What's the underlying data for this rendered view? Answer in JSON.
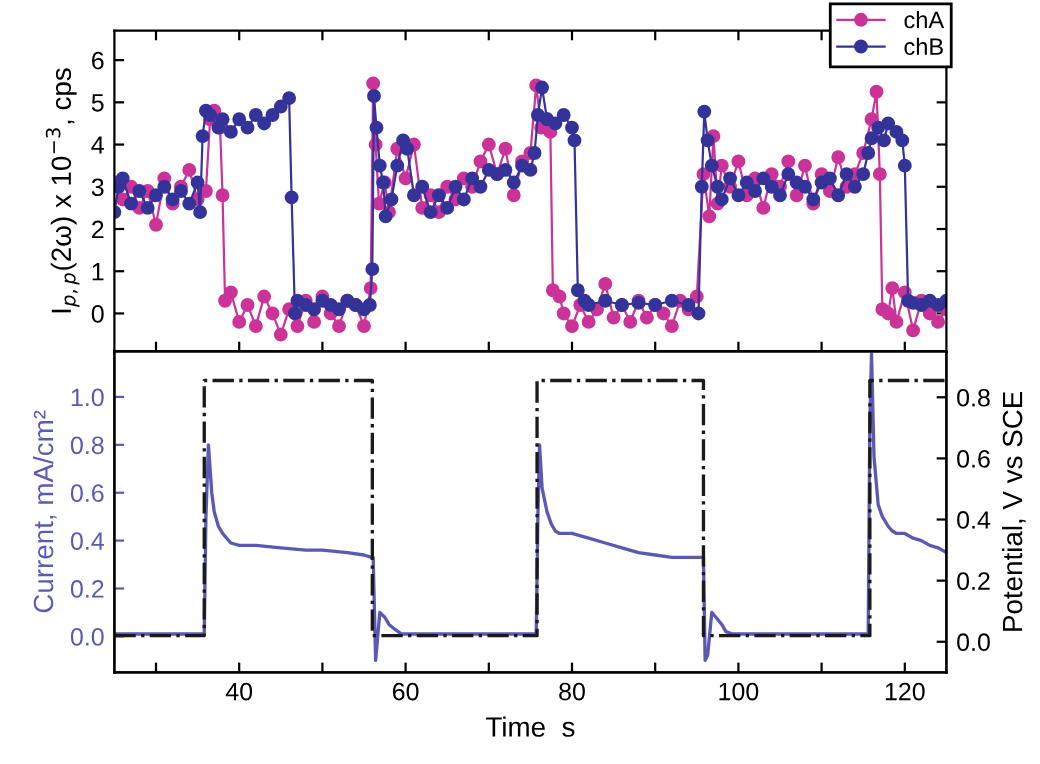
{
  "chart_data": [
    {
      "type": "line",
      "ylabel": "I$_{p,p}$(2ω) x 10$^{−3}$, cps",
      "legend": "top right",
      "marker": "circle",
      "tick_labels": "y",
      "xlim": [
        25,
        125
      ],
      "xticks": [
        {
          "value": 30,
          "label": null
        },
        {
          "value": 40,
          "label": null
        },
        {
          "value": 50,
          "label": null
        },
        {
          "value": 60,
          "label": null
        },
        {
          "value": 70,
          "label": null
        },
        {
          "value": 80,
          "label": null
        },
        {
          "value": 90,
          "label": null
        },
        {
          "value": 100,
          "label": null
        },
        {
          "value": 110,
          "label": null
        },
        {
          "value": 120,
          "label": null
        }
      ],
      "ylim": [
        -0.9,
        6.7
      ],
      "yticks": [
        0,
        1,
        2,
        3,
        4,
        5,
        6
      ],
      "series": [
        {
          "name": "chA",
          "color": "#cc3399",
          "x": [
            25,
            26,
            27,
            28,
            29,
            30,
            31,
            32,
            33,
            34,
            35,
            36,
            36.5,
            37,
            37.7,
            38.0,
            38.3,
            39,
            40,
            41,
            42,
            43,
            44,
            45,
            46,
            47,
            48,
            49,
            50,
            51,
            52,
            53,
            54,
            55,
            55.8,
            56.1,
            56.4,
            56.8,
            57.5,
            58,
            59,
            60,
            61,
            62,
            63,
            64,
            65,
            66,
            67,
            68,
            69,
            70,
            71,
            72,
            73,
            74,
            75,
            75.7,
            76.3,
            77.0,
            77.4,
            77.7,
            78.5,
            79,
            80,
            81,
            82,
            83,
            84,
            85,
            86,
            87,
            88,
            89,
            90,
            91,
            92,
            93,
            94,
            95,
            95.8,
            96.5,
            97,
            97.5,
            98,
            99,
            100,
            101,
            102,
            103,
            104,
            105,
            106,
            107,
            108,
            109,
            110,
            111,
            112,
            113,
            114,
            115,
            116,
            116.6,
            117.0,
            117.3,
            118,
            118.5,
            119,
            120,
            121,
            122,
            123,
            124,
            125
          ],
          "values": [
            3.1,
            2.7,
            3.0,
            2.5,
            2.9,
            2.1,
            3.2,
            2.6,
            3.0,
            3.4,
            2.7,
            2.9,
            4.6,
            4.8,
            4.4,
            2.8,
            0.3,
            0.5,
            -0.2,
            0.2,
            -0.3,
            0.4,
            0.0,
            -0.5,
            0.1,
            -0.3,
            0.3,
            -0.2,
            0.4,
            0.0,
            -0.3,
            0.3,
            0.2,
            -0.3,
            0.6,
            5.45,
            4.0,
            2.6,
            3.1,
            2.4,
            3.9,
            3.2,
            4.0,
            2.5,
            2.8,
            2.4,
            3.0,
            2.7,
            3.2,
            3.0,
            3.6,
            4.0,
            3.3,
            3.9,
            2.8,
            3.6,
            3.8,
            5.4,
            4.4,
            4.6,
            4.3,
            0.55,
            0.4,
            0.0,
            -0.3,
            0.2,
            -0.2,
            0.1,
            0.7,
            -0.1,
            0.2,
            -0.2,
            0.3,
            -0.1,
            0.2,
            0.0,
            -0.3,
            0.3,
            0.1,
            0.4,
            3.3,
            2.3,
            4.2,
            2.6,
            3.5,
            3.0,
            3.6,
            2.8,
            3.2,
            2.5,
            3.3,
            3.0,
            3.6,
            2.8,
            3.5,
            2.6,
            3.3,
            2.9,
            3.7,
            3.0,
            3.3,
            3.8,
            4.6,
            5.25,
            3.3,
            0.1,
            0.0,
            0.6,
            -0.2,
            0.5,
            -0.4,
            0.3,
            0.0,
            -0.2,
            0.1
          ]
        },
        {
          "name": "chB",
          "color": "#333399",
          "x": [
            25,
            25.5,
            26,
            27,
            28,
            29,
            30,
            31,
            32,
            33,
            34,
            35,
            35.3,
            35.6,
            36.0,
            36.5,
            37.5,
            38,
            39,
            40,
            41,
            42,
            43,
            44,
            45,
            46,
            46.3,
            46.7,
            47,
            48,
            49,
            50,
            51,
            52,
            53,
            54,
            55,
            55.7,
            56.0,
            56.2,
            56.5,
            56.9,
            57.3,
            57.6,
            58.3,
            59,
            59.7,
            60.2,
            61,
            62,
            63,
            64,
            65,
            66,
            67,
            68,
            69,
            70,
            71,
            72,
            73,
            74,
            75,
            75.5,
            75.9,
            76.4,
            77,
            78,
            79,
            80.0,
            80.3,
            80.7,
            81.5,
            82,
            84,
            86,
            88,
            90,
            92,
            94,
            95.2,
            95.6,
            95.9,
            96.3,
            96.8,
            97.5,
            98,
            99,
            100,
            101,
            102,
            103,
            104,
            105,
            106,
            107,
            108,
            109,
            110,
            111,
            112,
            113,
            114,
            115,
            115.6,
            116,
            116.8,
            117.5,
            118,
            119,
            119.7,
            120.0,
            120.4,
            121,
            122,
            123,
            124,
            125
          ],
          "values": [
            2.4,
            3.0,
            3.2,
            2.6,
            2.9,
            2.5,
            2.8,
            3.0,
            2.7,
            2.9,
            2.6,
            3.1,
            2.4,
            4.2,
            4.8,
            4.7,
            4.4,
            4.6,
            4.3,
            4.6,
            4.4,
            4.7,
            4.5,
            4.7,
            4.9,
            5.1,
            2.75,
            0.0,
            0.3,
            0.2,
            0.1,
            0.3,
            0.2,
            0.1,
            0.3,
            0.2,
            0.1,
            0.2,
            1.05,
            5.15,
            4.4,
            3.5,
            3.1,
            2.3,
            2.7,
            3.5,
            4.1,
            3.9,
            2.8,
            3.0,
            2.4,
            2.8,
            2.5,
            3.0,
            2.7,
            3.2,
            3.0,
            3.4,
            3.3,
            3.4,
            3.1,
            3.5,
            3.4,
            3.8,
            4.7,
            5.35,
            4.6,
            4.5,
            4.7,
            4.4,
            4.1,
            0.55,
            0.3,
            0.2,
            0.3,
            0.2,
            0.25,
            0.2,
            0.3,
            0.2,
            0.0,
            3.0,
            4.78,
            4.1,
            3.5,
            3.0,
            2.7,
            3.2,
            2.8,
            3.1,
            2.9,
            3.2,
            3.0,
            2.8,
            3.3,
            3.1,
            3.0,
            2.7,
            3.1,
            3.2,
            2.8,
            3.3,
            3.0,
            3.3,
            3.8,
            4.15,
            4.4,
            4.1,
            4.5,
            4.3,
            4.1,
            3.5,
            0.3,
            0.25,
            0.2,
            0.3,
            0.2,
            0.3
          ]
        }
      ]
    },
    {
      "type": "line",
      "xlabel": "Time  s",
      "ylabel": "Current, mA/cm²",
      "y2label": "Potential, V vs SCE",
      "xlim": [
        25,
        125
      ],
      "xticks": [
        {
          "value": 30,
          "label": null
        },
        40,
        {
          "value": 50,
          "label": null
        },
        60,
        {
          "value": 70,
          "label": null
        },
        80,
        {
          "value": 90,
          "label": null
        },
        100,
        {
          "value": 110,
          "label": null
        },
        120
      ],
      "ylim": [
        -0.15,
        1.19
      ],
      "yticks": [
        {
          "value": 0,
          "label": "0.0"
        },
        {
          "value": 0.2,
          "label": "0.2"
        },
        {
          "value": 0.4,
          "label": "0.4"
        },
        {
          "value": 0.6,
          "label": "0.6"
        },
        {
          "value": 0.8,
          "label": "0.8"
        },
        {
          "value": 1,
          "label": "1.0"
        }
      ],
      "y2lim": [
        -0.1,
        0.95
      ],
      "y2ticks": [
        {
          "value": 0,
          "label": "0.0"
        },
        {
          "value": 0.2,
          "label": "0.2"
        },
        {
          "value": 0.4,
          "label": "0.4"
        },
        {
          "value": 0.6,
          "label": "0.6"
        },
        {
          "value": 0.8,
          "label": "0.8"
        }
      ],
      "series": [
        {
          "color": "#5a5ab4",
          "x": [
            25,
            35.8,
            36.0,
            36.3,
            36.7,
            37,
            37.5,
            38,
            38.5,
            39,
            40,
            42,
            45,
            48,
            50,
            53,
            55,
            55.9,
            56.1,
            56.4,
            56.9,
            57.5,
            58,
            58.7,
            59.5,
            60,
            70,
            75.7,
            75.9,
            76.1,
            76.4,
            77,
            77.5,
            78,
            78.5,
            80,
            82,
            84,
            86,
            88,
            90,
            92,
            95.7,
            95.8,
            96.0,
            96.3,
            96.8,
            97.3,
            98,
            98.5,
            99.3,
            100,
            110,
            115.6,
            115.8,
            116.0,
            116.3,
            116.8,
            117.3,
            118,
            118.5,
            119,
            120,
            121,
            122,
            123,
            124,
            125
          ],
          "values": [
            0.01,
            0.01,
            0.5,
            0.8,
            0.6,
            0.52,
            0.46,
            0.43,
            0.41,
            0.39,
            0.38,
            0.38,
            0.37,
            0.36,
            0.36,
            0.35,
            0.34,
            0.33,
            0.33,
            -0.1,
            0.1,
            0.08,
            0.05,
            0.03,
            0.01,
            0.01,
            0.01,
            0.01,
            0.5,
            0.8,
            0.62,
            0.52,
            0.47,
            0.44,
            0.43,
            0.43,
            0.41,
            0.39,
            0.37,
            0.35,
            0.34,
            0.33,
            0.33,
            0.33,
            -0.1,
            -0.08,
            0.1,
            0.08,
            0.05,
            0.02,
            0.01,
            0.01,
            0.01,
            0.01,
            0.9,
            1.18,
            0.75,
            0.55,
            0.5,
            0.46,
            0.44,
            0.43,
            0.43,
            0.41,
            0.4,
            0.38,
            0.37,
            0.35
          ]
        },
        {
          "color": "#1a1a1a",
          "axis": "y2",
          "line_style": "dashdot",
          "x": [
            25,
            35.8,
            35.8,
            56,
            56,
            75.8,
            75.8,
            95.8,
            95.8,
            115.8,
            115.8,
            125
          ],
          "values": [
            0.02,
            0.02,
            0.855,
            0.855,
            0.02,
            0.02,
            0.855,
            0.855,
            0.02,
            0.02,
            0.855,
            0.855
          ]
        }
      ]
    }
  ]
}
